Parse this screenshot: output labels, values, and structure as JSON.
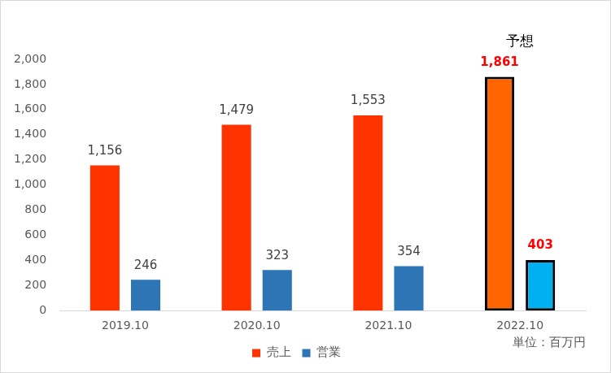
{
  "chart_data": {
    "type": "bar",
    "categories": [
      "2019.10",
      "2020.10",
      "2021.10",
      "2022.10"
    ],
    "series": [
      {
        "name": "売上",
        "color": "#ff3300",
        "colors": [
          "#ff3300",
          "#ff3300",
          "#ff3300",
          "#ff6600"
        ],
        "values": [
          1156,
          1479,
          1553,
          1861
        ],
        "value_labels": [
          "1,156",
          "1,479",
          "1,553",
          "1,861"
        ]
      },
      {
        "name": "営業",
        "color": "#2e75b6",
        "colors": [
          "#2e75b6",
          "#2e75b6",
          "#2e75b6",
          "#00b0f0"
        ],
        "values": [
          246,
          323,
          354,
          403
        ]
      }
    ],
    "ylim": [
      0,
      2000
    ],
    "yticks": [
      0,
      200,
      400,
      600,
      800,
      {
        "value": 1000,
        "label": "1,000"
      },
      {
        "value": 1200,
        "label": "1,200"
      },
      {
        "value": 1400,
        "label": "1,400"
      },
      {
        "value": 1600,
        "label": "1,600"
      },
      {
        "value": 1800,
        "label": "1,800"
      },
      {
        "value": 2000,
        "label": "2,000"
      }
    ],
    "grid": false,
    "legend": "bottom",
    "data_labels": true,
    "annotations": [
      {
        "text": "予想",
        "category": "2022.10"
      },
      {
        "text": "単位：百万円"
      }
    ]
  }
}
